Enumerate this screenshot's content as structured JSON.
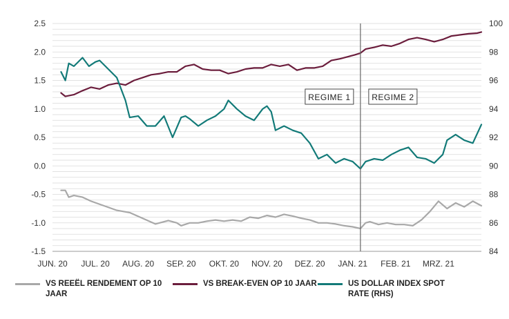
{
  "chart_data": {
    "type": "line",
    "left_axis": {
      "ylim": [
        -1.5,
        2.5
      ],
      "ticks": [
        "2.5",
        "2.0",
        "1.5",
        "1.0",
        "0.5",
        "0.0",
        "-0.5",
        "-1.0",
        "-1.5"
      ]
    },
    "right_axis": {
      "ylim": [
        84,
        100
      ],
      "ticks": [
        "100",
        "98",
        "96",
        "94",
        "92",
        "90",
        "88",
        "86",
        "84"
      ]
    },
    "x_labels": [
      "JUN. 20",
      "JUL. 20",
      "AUG. 20",
      "SEP. 20",
      "OKT. 20",
      "NOV. 20",
      "DEZ. 20",
      "JAN. 21",
      "FEB. 21",
      "MRZ. 21"
    ],
    "x_range": [
      0,
      10
    ],
    "grid": true,
    "regimes": {
      "divider_x": 7.18,
      "regime1_label": "REGIME 1",
      "regime2_label": "REGIME 2"
    },
    "series": [
      {
        "name": "VS REEËL RENDEMENT OP 10 JAAR",
        "axis": "left",
        "color": "#a8a8a8",
        "x": [
          0.2,
          0.3,
          0.38,
          0.5,
          0.7,
          0.9,
          1.2,
          1.5,
          1.8,
          2.1,
          2.4,
          2.7,
          2.9,
          3.0,
          3.2,
          3.4,
          3.6,
          3.8,
          4.0,
          4.2,
          4.4,
          4.6,
          4.8,
          5.0,
          5.2,
          5.4,
          5.6,
          5.8,
          6.0,
          6.2,
          6.4,
          6.6,
          6.8,
          7.0,
          7.18,
          7.3,
          7.4,
          7.6,
          7.8,
          8.0,
          8.2,
          8.4,
          8.6,
          8.8,
          9.0,
          9.2,
          9.4,
          9.6,
          9.8,
          10.0
        ],
        "y": [
          -0.43,
          -0.43,
          -0.55,
          -0.52,
          -0.55,
          -0.62,
          -0.7,
          -0.78,
          -0.82,
          -0.92,
          -1.02,
          -0.96,
          -1.0,
          -1.05,
          -1.0,
          -1.0,
          -0.97,
          -0.95,
          -0.97,
          -0.95,
          -0.97,
          -0.9,
          -0.92,
          -0.87,
          -0.9,
          -0.85,
          -0.88,
          -0.92,
          -0.95,
          -1.0,
          -1.0,
          -1.02,
          -1.05,
          -1.07,
          -1.1,
          -1.0,
          -0.98,
          -1.03,
          -1.0,
          -1.03,
          -1.03,
          -1.05,
          -0.95,
          -0.8,
          -0.62,
          -0.75,
          -0.65,
          -0.72,
          -0.62,
          -0.7
        ]
      },
      {
        "name": "VS BREAK-EVEN OP 10 JAAR",
        "axis": "left",
        "color": "#6b1d3c",
        "x": [
          0.2,
          0.3,
          0.5,
          0.7,
          0.9,
          1.1,
          1.3,
          1.5,
          1.7,
          1.9,
          2.1,
          2.3,
          2.5,
          2.7,
          2.9,
          3.1,
          3.3,
          3.5,
          3.7,
          3.9,
          4.1,
          4.3,
          4.5,
          4.7,
          4.9,
          5.1,
          5.3,
          5.5,
          5.7,
          5.9,
          6.1,
          6.3,
          6.5,
          6.7,
          6.9,
          7.05,
          7.18,
          7.3,
          7.5,
          7.7,
          7.9,
          8.1,
          8.3,
          8.5,
          8.7,
          8.9,
          9.1,
          9.3,
          9.5,
          9.7,
          9.9,
          10.0
        ],
        "y": [
          1.28,
          1.22,
          1.25,
          1.32,
          1.38,
          1.35,
          1.42,
          1.45,
          1.42,
          1.5,
          1.55,
          1.6,
          1.62,
          1.65,
          1.65,
          1.75,
          1.78,
          1.7,
          1.68,
          1.68,
          1.62,
          1.65,
          1.7,
          1.72,
          1.72,
          1.78,
          1.75,
          1.78,
          1.68,
          1.72,
          1.72,
          1.75,
          1.85,
          1.88,
          1.92,
          1.95,
          1.98,
          2.05,
          2.08,
          2.12,
          2.1,
          2.15,
          2.22,
          2.25,
          2.22,
          2.18,
          2.22,
          2.28,
          2.3,
          2.32,
          2.33,
          2.35
        ]
      },
      {
        "name": "US DOLLAR INDEX SPOT RATE (RHS)",
        "axis": "right",
        "color": "#127a78",
        "x": [
          0.2,
          0.3,
          0.38,
          0.5,
          0.7,
          0.85,
          1.0,
          1.1,
          1.3,
          1.5,
          1.7,
          1.8,
          2.0,
          2.2,
          2.4,
          2.6,
          2.8,
          3.0,
          3.1,
          3.2,
          3.4,
          3.6,
          3.8,
          4.0,
          4.1,
          4.3,
          4.5,
          4.7,
          4.9,
          5.0,
          5.1,
          5.2,
          5.4,
          5.6,
          5.8,
          6.0,
          6.2,
          6.4,
          6.6,
          6.8,
          7.0,
          7.18,
          7.3,
          7.5,
          7.7,
          7.9,
          8.1,
          8.3,
          8.5,
          8.7,
          8.9,
          9.1,
          9.2,
          9.4,
          9.6,
          9.8,
          10.0
        ],
        "y": [
          96.6,
          96.0,
          97.2,
          97.0,
          97.6,
          97.0,
          97.3,
          97.4,
          96.8,
          96.2,
          94.6,
          93.4,
          93.5,
          92.8,
          92.8,
          93.5,
          92.0,
          93.4,
          93.5,
          93.3,
          92.8,
          93.2,
          93.5,
          94.0,
          94.6,
          94.0,
          93.5,
          93.2,
          94.0,
          94.2,
          93.8,
          92.5,
          92.8,
          92.5,
          92.3,
          91.6,
          90.5,
          90.8,
          90.2,
          90.5,
          90.3,
          89.8,
          90.3,
          90.5,
          90.4,
          90.8,
          91.1,
          91.3,
          90.6,
          90.5,
          90.2,
          90.8,
          91.8,
          92.2,
          91.8,
          91.6,
          92.9
        ]
      }
    ]
  }
}
